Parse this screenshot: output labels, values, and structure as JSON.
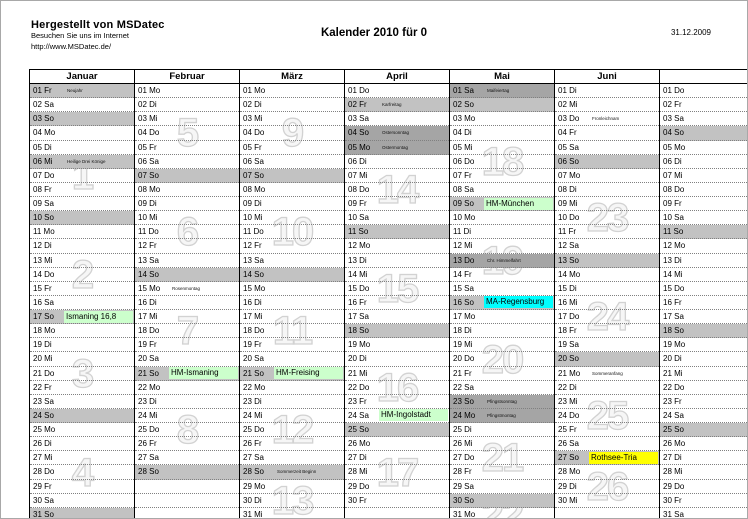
{
  "header": {
    "producer_bold": "Hergestellt von MSDatec",
    "producer_line2": "Besuchen Sie uns im Internet",
    "producer_url": "http://www.MSDatec.de/",
    "title": "Kalender 2010 für 0",
    "print_date": "31.12.2009"
  },
  "colors": {
    "sunday_bg": "#c2c2c2",
    "holiday_bg": "#a5a5a5",
    "event_green": "#ccffcc",
    "event_cyan": "#00ffff",
    "event_yellow": "#ffff00",
    "watermark_outline": "#d2d2d2"
  },
  "months": [
    {
      "name": "Januar",
      "days": [
        "01 Fr",
        "02 Sa",
        "03 So",
        "04 Mo",
        "05 Di",
        "06 Mi",
        "07 Do",
        "08 Fr",
        "09 Sa",
        "10 So",
        "11 Mo",
        "12 Di",
        "13 Mi",
        "14 Do",
        "15 Fr",
        "16 Sa",
        "17 So",
        "18 Mo",
        "19 Di",
        "20 Mi",
        "21 Do",
        "22 Fr",
        "23 Sa",
        "24 So",
        "25 Mo",
        "26 Di",
        "27 Mi",
        "28 Do",
        "29 Fr",
        "30 Sa",
        "31 So"
      ],
      "gray_days": [
        1,
        3,
        6,
        10,
        17,
        24,
        31
      ],
      "dark_days": [],
      "holiday_notes": {
        "1": "Neujahr",
        "6": "Heilige Drei Könige"
      },
      "events": {
        "17": {
          "label": "Ismaning 16,8",
          "color": "green"
        }
      },
      "week_numbers": [
        {
          "n": "1",
          "from": 4,
          "to": 10
        },
        {
          "n": "2",
          "from": 11,
          "to": 17
        },
        {
          "n": "3",
          "from": 18,
          "to": 24
        },
        {
          "n": "4",
          "from": 25,
          "to": 31
        }
      ]
    },
    {
      "name": "Februar",
      "days": [
        "01 Mo",
        "02 Di",
        "03 Mi",
        "04 Do",
        "05 Fr",
        "06 Sa",
        "07 So",
        "08 Mo",
        "09 Di",
        "10 Mi",
        "11 Do",
        "12 Fr",
        "13 Sa",
        "14 So",
        "15 Mo",
        "16 Di",
        "17 Mi",
        "18 Do",
        "19 Fr",
        "20 Sa",
        "21 So",
        "22 Mo",
        "23 Di",
        "24 Mi",
        "25 Do",
        "26 Fr",
        "27 Sa",
        "28 So"
      ],
      "gray_days": [
        7,
        14,
        21,
        28
      ],
      "dark_days": [],
      "holiday_notes": {
        "15": "Rosenmontag"
      },
      "events": {
        "21": {
          "label": "HM-Ismaning",
          "color": "green"
        }
      },
      "week_numbers": [
        {
          "n": "5",
          "from": 1,
          "to": 7
        },
        {
          "n": "6",
          "from": 8,
          "to": 14
        },
        {
          "n": "7",
          "from": 15,
          "to": 21
        },
        {
          "n": "8",
          "from": 22,
          "to": 28
        }
      ]
    },
    {
      "name": "März",
      "days": [
        "01 Mo",
        "02 Di",
        "03 Mi",
        "04 Do",
        "05 Fr",
        "06 Sa",
        "07 So",
        "08 Mo",
        "09 Di",
        "10 Mi",
        "11 Do",
        "12 Fr",
        "13 Sa",
        "14 So",
        "15 Mo",
        "16 Di",
        "17 Mi",
        "18 Do",
        "19 Fr",
        "20 Sa",
        "21 So",
        "22 Mo",
        "23 Di",
        "24 Mi",
        "25 Do",
        "26 Fr",
        "27 Sa",
        "28 So",
        "29 Mo",
        "30 Di",
        "31 Mi"
      ],
      "gray_days": [
        7,
        14,
        21,
        28
      ],
      "dark_days": [],
      "holiday_notes": {
        "28": "Sommerzeit Beginn"
      },
      "events": {
        "21": {
          "label": "HM-Freising",
          "color": "green"
        }
      },
      "week_numbers": [
        {
          "n": "9",
          "from": 1,
          "to": 7
        },
        {
          "n": "10",
          "from": 8,
          "to": 14
        },
        {
          "n": "11",
          "from": 15,
          "to": 21
        },
        {
          "n": "12",
          "from": 22,
          "to": 28
        },
        {
          "n": "13",
          "from": 29,
          "to": 31
        }
      ]
    },
    {
      "name": "April",
      "days": [
        "01 Do",
        "02 Fr",
        "03 Sa",
        "04 So",
        "05 Mo",
        "06 Di",
        "07 Mi",
        "08 Do",
        "09 Fr",
        "10 Sa",
        "11 So",
        "12 Mo",
        "13 Di",
        "14 Mi",
        "15 Do",
        "16 Fr",
        "17 Sa",
        "18 So",
        "19 Mo",
        "20 Di",
        "21 Mi",
        "22 Do",
        "23 Fr",
        "24 Sa",
        "25 So",
        "26 Mo",
        "27 Di",
        "28 Mi",
        "29 Do",
        "30 Fr"
      ],
      "gray_days": [
        2,
        11,
        18,
        25
      ],
      "dark_days": [
        4,
        5
      ],
      "holiday_notes": {
        "2": "Karfreitag",
        "4": "Ostersonntag",
        "5": "Ostermontag"
      },
      "events": {
        "24": {
          "label": "HM-Ingolstadt",
          "color": "green"
        }
      },
      "week_numbers": [
        {
          "n": "14",
          "from": 5,
          "to": 11
        },
        {
          "n": "15",
          "from": 12,
          "to": 18
        },
        {
          "n": "16",
          "from": 19,
          "to": 25
        },
        {
          "n": "17",
          "from": 26,
          "to": 30
        }
      ]
    },
    {
      "name": "Mai",
      "days": [
        "01 Sa",
        "02 So",
        "03 Mo",
        "04 Di",
        "05 Mi",
        "06 Do",
        "07 Fr",
        "08 Sa",
        "09 So",
        "10 Mo",
        "11 Di",
        "12 Mi",
        "13 Do",
        "14 Fr",
        "15 Sa",
        "16 So",
        "17 Mo",
        "18 Di",
        "19 Mi",
        "20 Do",
        "21 Fr",
        "22 Sa",
        "23 So",
        "24 Mo",
        "25 Di",
        "26 Mi",
        "27 Do",
        "28 Fr",
        "29 Sa",
        "30 So",
        "31 Mo"
      ],
      "gray_days": [
        2,
        9,
        16,
        30
      ],
      "dark_days": [
        1,
        13,
        23,
        24
      ],
      "holiday_notes": {
        "1": "Maifeiertag",
        "13": "Chr. Himmelfahrt",
        "23": "Pfingstsonntag",
        "24": "Pfingstmontag"
      },
      "events": {
        "9": {
          "label": "HM-München",
          "color": "green"
        },
        "16": {
          "label": "MA-Regensburg",
          "color": "cyan"
        }
      },
      "week_numbers": [
        {
          "n": "18",
          "from": 3,
          "to": 9
        },
        {
          "n": "19",
          "from": 10,
          "to": 16
        },
        {
          "n": "20",
          "from": 17,
          "to": 23
        },
        {
          "n": "21",
          "from": 24,
          "to": 30
        },
        {
          "n": "22",
          "from": 31,
          "to": 31
        }
      ]
    },
    {
      "name": "Juni",
      "days": [
        "01 Di",
        "02 Mi",
        "03 Do",
        "04 Fr",
        "05 Sa",
        "06 So",
        "07 Mo",
        "08 Di",
        "09 Mi",
        "10 Do",
        "11 Fr",
        "12 Sa",
        "13 So",
        "14 Mo",
        "15 Di",
        "16 Mi",
        "17 Do",
        "18 Fr",
        "19 Sa",
        "20 So",
        "21 Mo",
        "22 Di",
        "23 Mi",
        "24 Do",
        "25 Fr",
        "26 Sa",
        "27 So",
        "28 Mo",
        "29 Di",
        "30 Mi"
      ],
      "gray_days": [
        6,
        13,
        20,
        27
      ],
      "dark_days": [],
      "holiday_notes": {
        "3": "Fronleichnam",
        "21": "Sommeranfang"
      },
      "events": {
        "27": {
          "label": "Rothsee-Tria",
          "color": "yellow"
        }
      },
      "week_numbers": [
        {
          "n": "23",
          "from": 7,
          "to": 13
        },
        {
          "n": "24",
          "from": 14,
          "to": 20
        },
        {
          "n": "25",
          "from": 21,
          "to": 27
        },
        {
          "n": "26",
          "from": 28,
          "to": 30
        }
      ]
    },
    {
      "name": "",
      "days": [
        "01 Do",
        "02 Fr",
        "03 Sa",
        "04 So",
        "05 Mo",
        "06 Di",
        "07 Mi",
        "08 Do",
        "09 Fr",
        "10 Sa",
        "11 So",
        "12 Mo",
        "13 Di",
        "14 Mi",
        "15 Do",
        "16 Fr",
        "17 Sa",
        "18 So",
        "19 Mo",
        "20 Di",
        "21 Mi",
        "22 Do",
        "23 Fr",
        "24 Sa",
        "25 So",
        "26 Mo",
        "27 Di",
        "28 Mi",
        "29 Do",
        "30 Fr",
        "31 Sa"
      ],
      "gray_days": [
        4,
        11,
        18,
        25
      ],
      "dark_days": [],
      "holiday_notes": {},
      "events": {},
      "week_numbers": []
    }
  ]
}
